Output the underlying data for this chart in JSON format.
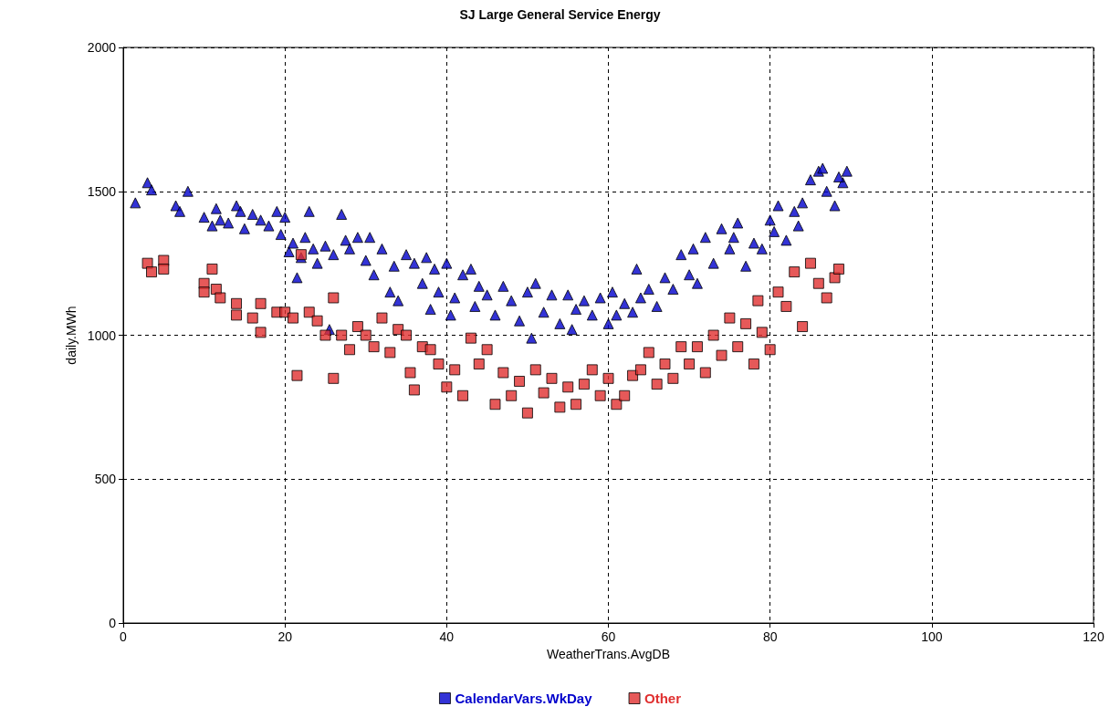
{
  "chart_data": {
    "type": "scatter",
    "title": "SJ Large General Service Energy",
    "xlabel": "WeatherTrans.AvgDB",
    "ylabel": "daily.MWh",
    "xlim": [
      0,
      120
    ],
    "xticks": [
      0,
      20,
      40,
      60,
      80,
      100,
      120
    ],
    "ylim": [
      0,
      2000
    ],
    "yticks": [
      0,
      500,
      1000,
      1500,
      2000
    ],
    "grid": true,
    "legend": "bottom",
    "series": [
      {
        "name": "CalendarVars.WkDay",
        "color": "#0000cc",
        "marker": "triangle",
        "x": [
          1.5,
          3,
          3.5,
          6.5,
          7,
          8,
          10,
          11,
          11.5,
          12,
          13,
          14,
          14.5,
          15,
          16,
          17,
          18,
          19,
          19.5,
          20,
          20.5,
          21,
          21.5,
          22,
          22.5,
          23,
          23.5,
          24,
          25,
          25.5,
          26,
          27,
          27.5,
          28,
          29,
          30,
          30.5,
          31,
          32,
          33,
          33.5,
          34,
          35,
          36,
          37,
          37.5,
          38,
          38.5,
          39,
          40,
          40.5,
          41,
          42,
          43,
          43.5,
          44,
          45,
          46,
          47,
          48,
          49,
          50,
          50.5,
          51,
          52,
          53,
          54,
          55,
          55.5,
          56,
          57,
          58,
          59,
          60,
          60.5,
          61,
          62,
          63,
          63.5,
          64,
          65,
          66,
          67,
          68,
          69,
          70,
          70.5,
          71,
          72,
          73,
          74,
          75,
          75.5,
          76,
          77,
          78,
          79,
          80,
          80.5,
          81,
          82,
          83,
          83.5,
          84,
          85,
          86,
          87,
          88,
          89,
          89.5,
          86.5,
          88.5
        ],
        "values": [
          1460,
          1530,
          1505,
          1450,
          1430,
          1500,
          1410,
          1380,
          1440,
          1400,
          1390,
          1450,
          1430,
          1370,
          1420,
          1400,
          1380,
          1430,
          1350,
          1410,
          1290,
          1320,
          1200,
          1270,
          1340,
          1430,
          1300,
          1250,
          1310,
          1020,
          1280,
          1420,
          1330,
          1300,
          1340,
          1260,
          1340,
          1210,
          1300,
          1150,
          1240,
          1120,
          1280,
          1250,
          1180,
          1270,
          1090,
          1230,
          1150,
          1250,
          1070,
          1130,
          1210,
          1230,
          1100,
          1170,
          1140,
          1070,
          1170,
          1120,
          1050,
          1150,
          990,
          1180,
          1080,
          1140,
          1040,
          1140,
          1020,
          1090,
          1120,
          1070,
          1130,
          1040,
          1150,
          1070,
          1110,
          1080,
          1230,
          1130,
          1160,
          1100,
          1200,
          1160,
          1280,
          1210,
          1300,
          1180,
          1340,
          1250,
          1370,
          1300,
          1340,
          1390,
          1240,
          1320,
          1300,
          1400,
          1360,
          1450,
          1330,
          1430,
          1380,
          1460,
          1540,
          1570,
          1500,
          1450,
          1530,
          1570,
          1580,
          1550
        ]
      },
      {
        "name": "Other",
        "color": "#e03030",
        "marker": "square",
        "x": [
          3,
          3.5,
          5,
          5,
          10,
          10,
          11,
          11.5,
          12,
          14,
          14,
          16,
          17,
          17,
          19,
          20,
          21,
          21.5,
          22,
          23,
          24,
          25,
          26,
          26,
          27,
          28,
          29,
          30,
          31,
          32,
          33,
          34,
          35,
          35.5,
          36,
          37,
          38,
          39,
          40,
          41,
          42,
          43,
          44,
          45,
          46,
          47,
          48,
          49,
          50,
          51,
          52,
          53,
          54,
          55,
          56,
          57,
          58,
          59,
          60,
          61,
          62,
          63,
          64,
          65,
          66,
          67,
          68,
          69,
          70,
          71,
          72,
          73,
          74,
          75,
          76,
          77,
          78,
          78.5,
          79,
          80,
          81,
          82,
          83,
          84,
          85,
          86,
          87,
          88,
          88.5
        ],
        "values": [
          1250,
          1220,
          1260,
          1230,
          1180,
          1150,
          1230,
          1160,
          1130,
          1070,
          1110,
          1060,
          1010,
          1110,
          1080,
          1080,
          1060,
          860,
          1280,
          1080,
          1050,
          1000,
          850,
          1130,
          1000,
          950,
          1030,
          1000,
          960,
          1060,
          940,
          1020,
          1000,
          870,
          810,
          960,
          950,
          900,
          820,
          880,
          790,
          990,
          900,
          950,
          760,
          870,
          790,
          840,
          730,
          880,
          800,
          850,
          750,
          820,
          760,
          830,
          880,
          790,
          850,
          760,
          790,
          860,
          880,
          940,
          830,
          900,
          850,
          960,
          900,
          960,
          870,
          1000,
          930,
          1060,
          960,
          1040,
          900,
          1120,
          1010,
          950,
          1150,
          1100,
          1220,
          1030,
          1250,
          1180,
          1130,
          1200,
          1230
        ]
      }
    ]
  }
}
